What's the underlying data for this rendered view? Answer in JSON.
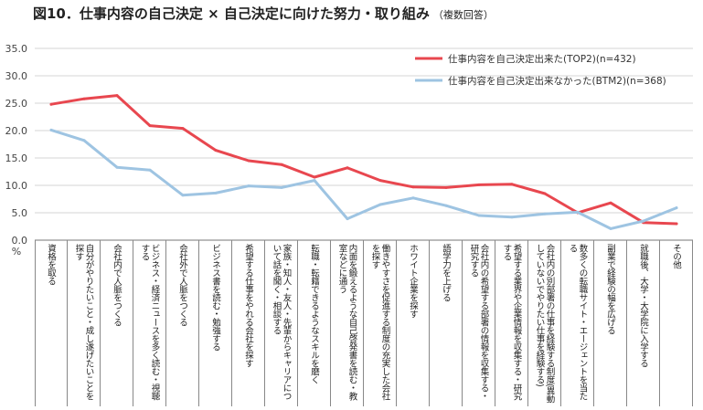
{
  "title": {
    "main": "図10．仕事内容の自己決定 × 自己決定に向けた努力・取り組み",
    "note": "（複数回答）"
  },
  "chart_data": {
    "type": "line",
    "ylabel": "%",
    "ylim": [
      0,
      35
    ],
    "yticks": [
      "0.0",
      "5.0",
      "10.0",
      "15.0",
      "20.0",
      "25.0",
      "30.0",
      "35.0"
    ],
    "grid": "horizontal",
    "legend_position": "top-right",
    "categories": [
      "資格を取る",
      "自分がやりたいこと・成し遂げたいことを探す",
      "会社内で人脈をつくる",
      "ビジネス・経済ニュースを多く読む・視聴する",
      "会社外で人脈をつくる",
      "ビジネス書を読む・勉強する",
      "希望する仕事をやれる会社を探す",
      "家族・知人・友人・先輩からキャリアについて話を聞く・相談する",
      "転職・転籍できるようなスキルを磨く",
      "内面を鍛えるような自己啓発書を読む・教室などに通う",
      "働きやすさを促進する制度の充実した会社を探す",
      "ホワイト企業を探す",
      "語学力を上げる",
      "会社内の希望する部署の情報を収集する・研究する",
      "希望する業界や企業情報を収集する・研究する",
      "会社内の別部署の仕事を経験する制度(異動していないでやりたい仕事を経験する)",
      "数多くの転職サイト・エージェントを当たる",
      "副業で経験の幅を広げる",
      "就職後、大学・大学院に入学する",
      "その他"
    ],
    "series": [
      {
        "name": "仕事内容を自己決定出来た(TOP2)(n=432)",
        "color": "#e8474f",
        "values": [
          24.8,
          25.8,
          26.4,
          20.9,
          20.4,
          16.4,
          14.5,
          13.8,
          11.5,
          13.2,
          10.9,
          9.7,
          9.6,
          10.1,
          10.2,
          8.5,
          5.0,
          6.8,
          3.2,
          3.0
        ]
      },
      {
        "name": "仕事内容を自己決定出来なかった(BTM2)(n=368)",
        "color": "#9ec4e2",
        "values": [
          20.1,
          18.2,
          13.3,
          12.8,
          8.2,
          8.6,
          9.9,
          9.6,
          10.9,
          3.9,
          6.5,
          7.7,
          6.3,
          4.5,
          4.2,
          4.8,
          5.1,
          2.1,
          3.5,
          5.9
        ]
      }
    ]
  }
}
